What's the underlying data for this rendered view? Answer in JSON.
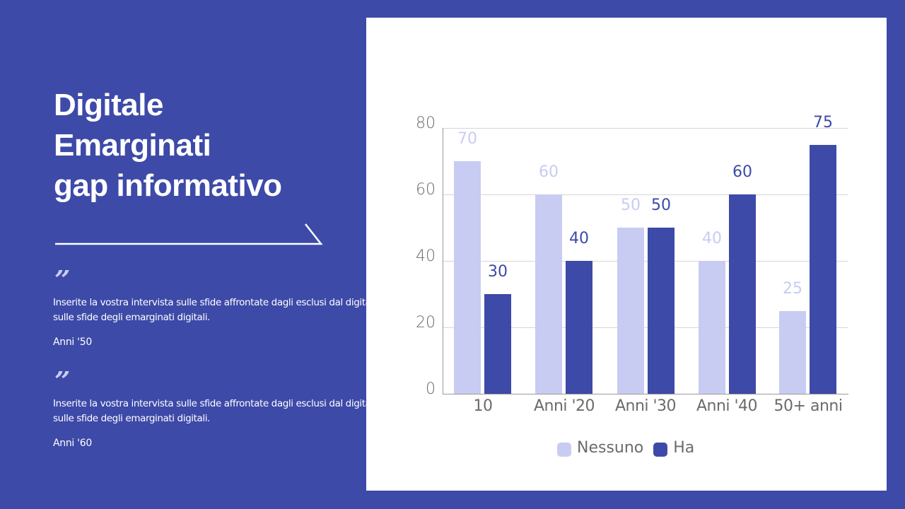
{
  "slide": {
    "title_lines": [
      "Digitale",
      "Emarginati",
      "gap informativo"
    ],
    "quotes": [
      {
        "mark": "”",
        "text_line1": "Inserite la vostra intervista sulle sfide affrontate dagli esclusi dal digital",
        "text_line2": "sulle sfide degli emarginati digitali.",
        "author": "Anni '50"
      },
      {
        "mark": "”",
        "text_line1": "Inserite la vostra intervista sulle sfide affrontate dagli esclusi dal digital",
        "text_line2": "sulle sfide degli emarginati digitali.",
        "author": "Anni '60"
      }
    ],
    "colors": {
      "background": "#3D4AA8",
      "panel": "#FFFFFF",
      "series_light": "#C8CCF2",
      "series_dark": "#3D4AA8",
      "text_white": "#FFFFFF",
      "axis_text": "#6B6B6B"
    }
  },
  "chart_data": {
    "type": "bar",
    "title": "",
    "xlabel": "",
    "ylabel": "",
    "categories": [
      "10",
      "Anni '20",
      "Anni '30",
      "Anni '40",
      "50+ anni"
    ],
    "series": [
      {
        "name": "Nessuno",
        "color": "#C8CCF2",
        "values": [
          70,
          60,
          50,
          40,
          25
        ]
      },
      {
        "name": "Ha",
        "color": "#3D4AA8",
        "values": [
          30,
          40,
          50,
          60,
          75
        ]
      }
    ],
    "ylim": [
      0,
      80
    ],
    "yticks": [
      "0",
      "20",
      "40",
      "60",
      "80"
    ],
    "grid": true,
    "data_labels": true,
    "legend": {
      "position": "bottom",
      "entries": [
        "Nessuno",
        "Ha"
      ]
    }
  }
}
